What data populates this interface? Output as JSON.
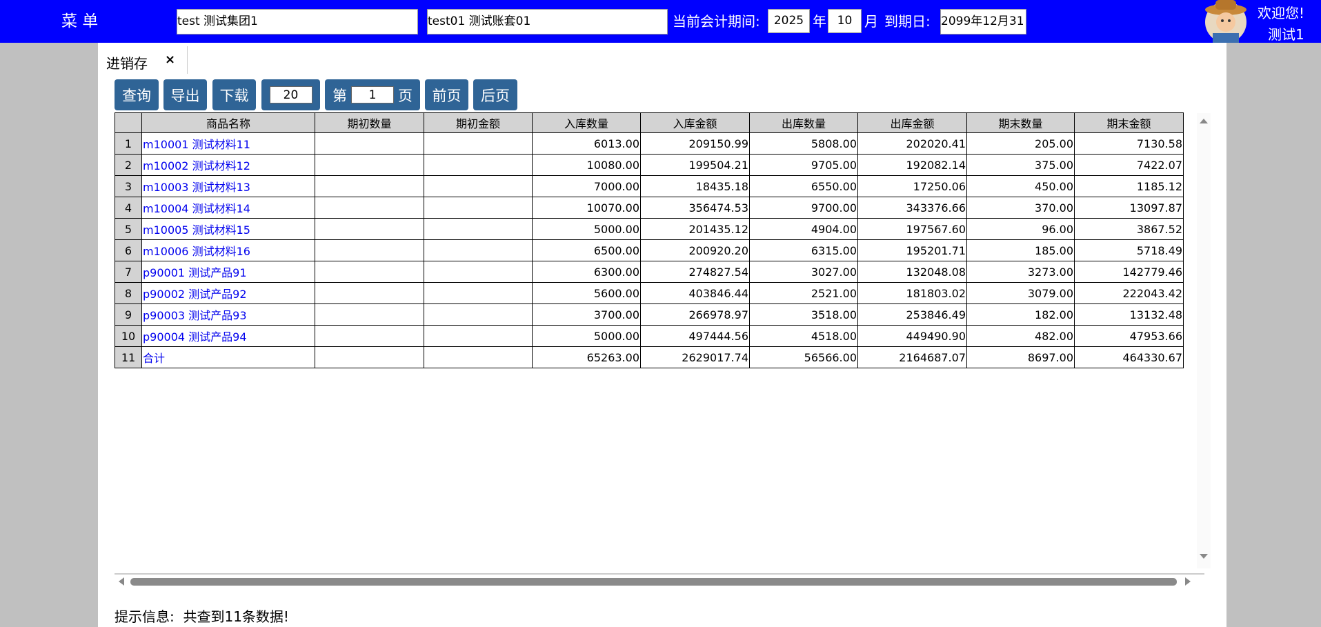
{
  "header": {
    "menu": "菜 单",
    "group": "test 测试集团1",
    "account": "test01 测试账套01",
    "period_label": "当前会计期间:",
    "year": "2025",
    "year_unit": "年",
    "month": "10",
    "month_unit": "月",
    "end_label": "到期日:",
    "end_date": "2099年12月31日",
    "welcome": "欢迎您!",
    "user": "测试1"
  },
  "tab": {
    "title": "进销存",
    "close": "×"
  },
  "toolbar": {
    "query": "查询",
    "export": "导出",
    "download": "下载",
    "page_size": "20",
    "page_prefix": "第",
    "page": "1",
    "page_suffix": "页",
    "prev": "前页",
    "next": "后页"
  },
  "table": {
    "columns": [
      "商品名称",
      "期初数量",
      "期初金额",
      "入库数量",
      "入库金额",
      "出库数量",
      "出库金额",
      "期末数量",
      "期末金额"
    ],
    "rows": [
      [
        "1",
        "m10001 测试材料11",
        null,
        null,
        "6013.00",
        "209150.99",
        "5808.00",
        "202020.41",
        "205.00",
        "7130.58"
      ],
      [
        "2",
        "m10002 测试材料12",
        null,
        null,
        "10080.00",
        "199504.21",
        "9705.00",
        "192082.14",
        "375.00",
        "7422.07"
      ],
      [
        "3",
        "m10003 测试材料13",
        null,
        null,
        "7000.00",
        "18435.18",
        "6550.00",
        "17250.06",
        "450.00",
        "1185.12"
      ],
      [
        "4",
        "m10004 测试材料14",
        null,
        null,
        "10070.00",
        "356474.53",
        "9700.00",
        "343376.66",
        "370.00",
        "13097.87"
      ],
      [
        "5",
        "m10005 测试材料15",
        null,
        null,
        "5000.00",
        "201435.12",
        "4904.00",
        "197567.60",
        "96.00",
        "3867.52"
      ],
      [
        "6",
        "m10006 测试材料16",
        null,
        null,
        "6500.00",
        "200920.20",
        "6315.00",
        "195201.71",
        "185.00",
        "5718.49"
      ],
      [
        "7",
        "p90001 测试产品91",
        null,
        null,
        "6300.00",
        "274827.54",
        "3027.00",
        "132048.08",
        "3273.00",
        "142779.46"
      ],
      [
        "8",
        "p90002 测试产品92",
        null,
        null,
        "5600.00",
        "403846.44",
        "2521.00",
        "181803.02",
        "3079.00",
        "222043.42"
      ],
      [
        "9",
        "p90003 测试产品93",
        null,
        null,
        "3700.00",
        "266978.97",
        "3518.00",
        "253846.49",
        "182.00",
        "13132.48"
      ],
      [
        "10",
        "p90004 测试产品94",
        null,
        null,
        "5000.00",
        "497444.56",
        "4518.00",
        "449490.90",
        "482.00",
        "47953.66"
      ],
      [
        "11",
        "合计",
        null,
        null,
        "65263.00",
        "2629017.74",
        "56566.00",
        "2164687.07",
        "8697.00",
        "464330.67"
      ]
    ]
  },
  "footer": {
    "label": "提示信息:",
    "message": "共查到11条数据!"
  }
}
